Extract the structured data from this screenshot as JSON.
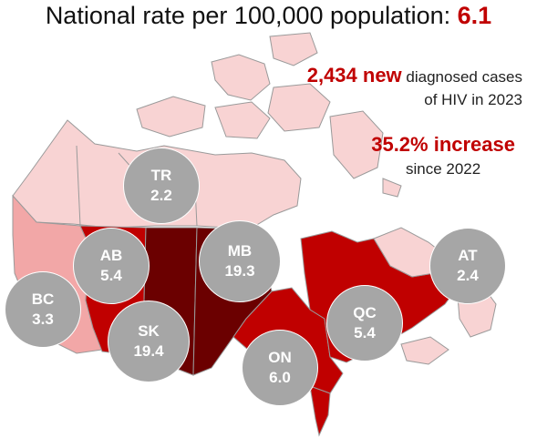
{
  "header": {
    "title_text": "National rate per 100,000 population: ",
    "title_value": "6.1"
  },
  "stats": {
    "cases_number": "2,434 new",
    "cases_text": " diagnosed cases",
    "cases_line2": "of HIV in 2023",
    "increase": "35.2% increase",
    "increase_line2": "since 2022"
  },
  "regions": [
    {
      "abbr": "TR",
      "rate": "2.2",
      "color": "#f8d3d3"
    },
    {
      "abbr": "BC",
      "rate": "3.3",
      "color": "#f2a7a7"
    },
    {
      "abbr": "AB",
      "rate": "5.4",
      "color": "#c00000"
    },
    {
      "abbr": "SK",
      "rate": "19.4",
      "color": "#6b0000"
    },
    {
      "abbr": "MB",
      "rate": "19.3",
      "color": "#6b0000"
    },
    {
      "abbr": "ON",
      "rate": "6.0",
      "color": "#c00000"
    },
    {
      "abbr": "QC",
      "rate": "5.4",
      "color": "#c00000"
    },
    {
      "abbr": "AT",
      "rate": "2.4",
      "color": "#f8d3d3"
    }
  ],
  "colors": {
    "accent": "#c00000",
    "bubble": "#a6a6a6",
    "borders": "#9a9a9a"
  }
}
